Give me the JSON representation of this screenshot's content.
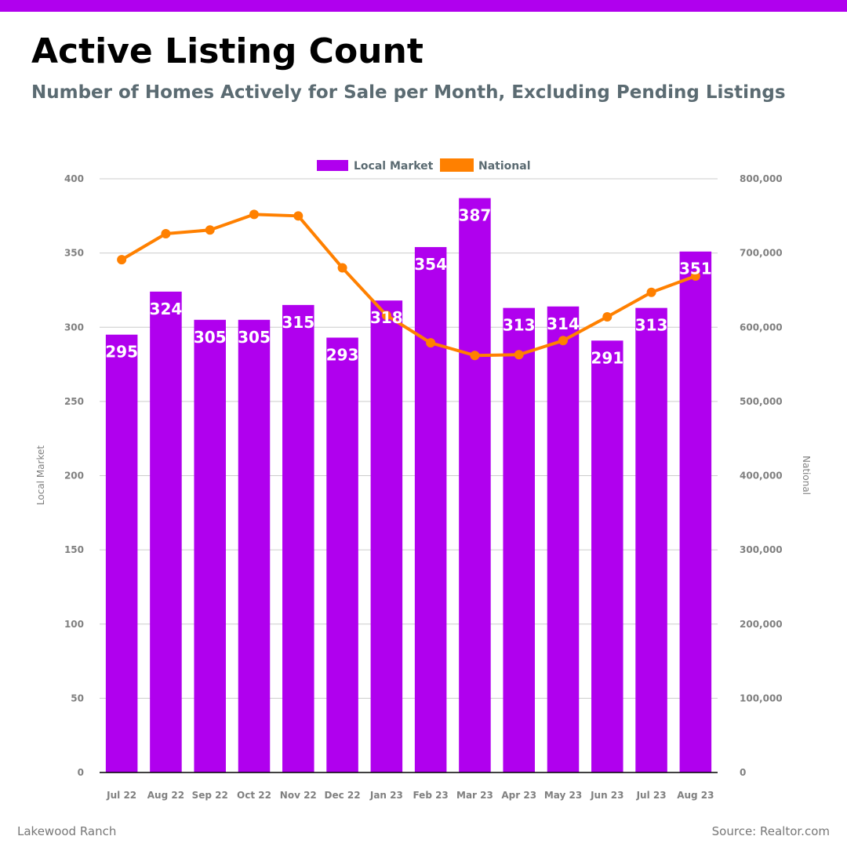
{
  "header": {
    "title": "Active Listing Count",
    "subtitle": "Number of Homes Actively for Sale per Month, Excluding Pending Listings"
  },
  "footer": {
    "location": "Lakewood Ranch",
    "source": "Source: Realtor.com"
  },
  "colors": {
    "accent": "#b000ee",
    "local": "#b000ee",
    "national": "#ff8000",
    "grid": "#cccccc",
    "tick": "#808080"
  },
  "chart_data": {
    "type": "bar",
    "title": "Active Listing Count",
    "subtitle": "Number of Homes Actively for Sale per Month, Excluding Pending Listings",
    "categories": [
      "Jul 22",
      "Aug 22",
      "Sep 22",
      "Oct 22",
      "Nov 22",
      "Dec 22",
      "Jan 23",
      "Feb 23",
      "Mar 23",
      "Apr 23",
      "May 23",
      "Jun 23",
      "Jul 23",
      "Aug 23"
    ],
    "series": [
      {
        "name": "Local Market",
        "type": "bar",
        "axis": "left",
        "values": [
          295,
          324,
          305,
          305,
          315,
          293,
          318,
          354,
          387,
          313,
          314,
          291,
          313,
          351
        ],
        "data_labels": [
          "295",
          "324",
          "305",
          "305",
          "315",
          "293",
          "318",
          "354",
          "387",
          "313",
          "314",
          "291",
          "313",
          "351"
        ]
      },
      {
        "name": "National",
        "type": "line",
        "axis": "right",
        "values": [
          691000,
          726000,
          731000,
          752000,
          750000,
          680000,
          616000,
          579000,
          562000,
          563000,
          582000,
          614000,
          647000,
          669000
        ]
      }
    ],
    "ylabel": "Local Market",
    "ylabel_right": "National",
    "ylim": [
      0,
      400
    ],
    "ylim_right": [
      0,
      800000
    ],
    "yticks": [
      0,
      50,
      100,
      150,
      200,
      250,
      300,
      350,
      400
    ],
    "yticks_labels": [
      "0",
      "50",
      "100",
      "150",
      "200",
      "250",
      "300",
      "350",
      "400"
    ],
    "yticks_right": [
      0,
      100000,
      200000,
      300000,
      400000,
      500000,
      600000,
      700000,
      800000
    ],
    "yticks_right_labels": [
      "0",
      "100,000",
      "200,000",
      "300,000",
      "400,000",
      "500,000",
      "600,000",
      "700,000",
      "800,000"
    ],
    "legend": {
      "position": "top-center",
      "entries": [
        "Local Market",
        "National"
      ]
    },
    "grid": true
  }
}
